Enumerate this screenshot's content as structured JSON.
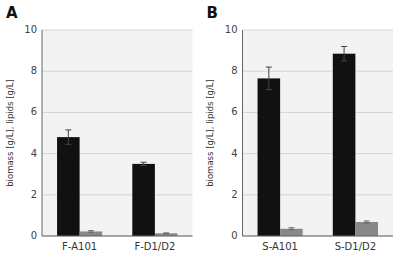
{
  "chart_data": [
    {
      "type": "bar",
      "title": "A",
      "categories": [
        "F-A101",
        "F-D1/D2"
      ],
      "series": [
        {
          "color": "#111111",
          "values": [
            4.8,
            3.5
          ],
          "errors": [
            0.35,
            0.08
          ]
        },
        {
          "color": "#888888",
          "values": [
            0.22,
            0.13
          ],
          "errors": [
            0.04,
            0.02
          ]
        }
      ],
      "y_label": "biomass [g/L], lipids [g/L]",
      "ylim": [
        0,
        10
      ],
      "yticks": [
        0,
        2,
        4,
        6,
        8,
        10
      ],
      "grid": true
    },
    {
      "type": "bar",
      "title": "B",
      "categories": [
        "S-A101",
        "S-D1/D2"
      ],
      "series": [
        {
          "color": "#111111",
          "values": [
            7.65,
            8.85
          ],
          "errors": [
            0.55,
            0.35
          ]
        },
        {
          "color": "#888888",
          "values": [
            0.35,
            0.68
          ],
          "errors": [
            0.05,
            0.05
          ]
        }
      ],
      "y_label": "biomass [g/L], lipids [g/L]",
      "ylim": [
        0,
        10
      ],
      "yticks": [
        0,
        2,
        4,
        6,
        8,
        10
      ],
      "grid": true
    }
  ]
}
